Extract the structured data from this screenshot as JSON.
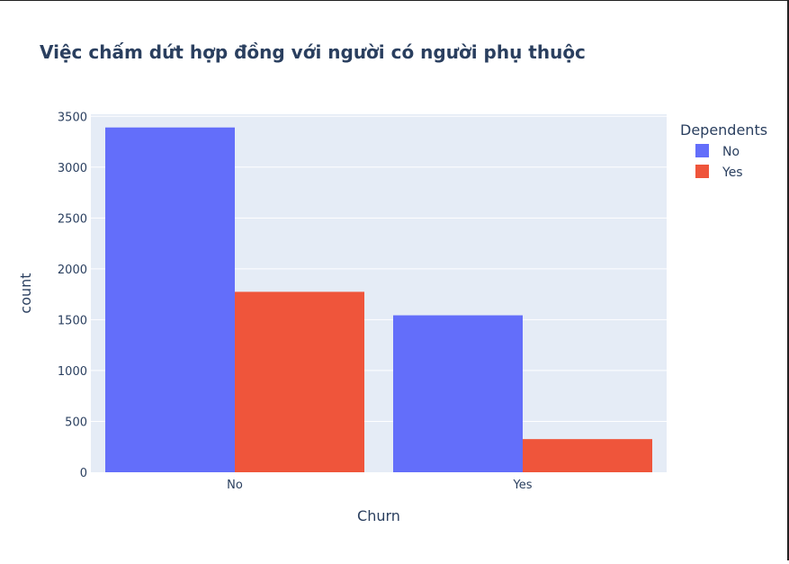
{
  "chart_data": {
    "type": "bar",
    "title": "Việc chấm dứt hợp đồng với người có người phụ thuộc",
    "xlabel": "Churn",
    "ylabel": "count",
    "categories": [
      "No",
      "Yes"
    ],
    "series": [
      {
        "name": "No",
        "color": "#636efa",
        "values": [
          3390,
          1543
        ]
      },
      {
        "name": "Yes",
        "color": "#ef553b",
        "values": [
          1774,
          326
        ]
      }
    ],
    "yticks": [
      0,
      500,
      1000,
      1500,
      2000,
      2500,
      3000,
      3500
    ],
    "ylim": [
      0,
      3520
    ],
    "legend": {
      "title": "Dependents",
      "position": "top-right"
    },
    "grid": true,
    "plot_bg": "#e5ecf6"
  }
}
